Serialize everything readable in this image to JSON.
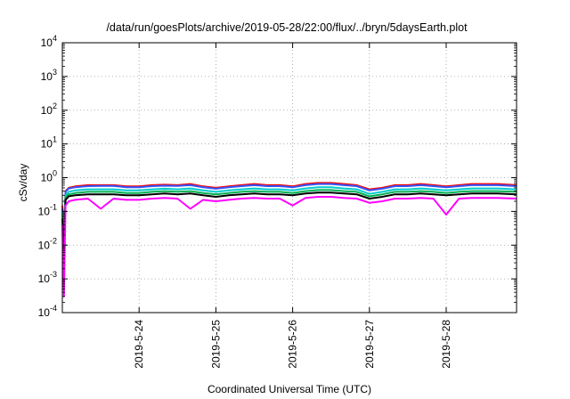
{
  "chart_data": {
    "type": "line",
    "title": "/data/run/goesPlots/archive/2019-05-28/22:00/flux/../bryn/5daysEarth.plot",
    "xlabel": "Coordinated Universal Time (UTC)",
    "ylabel": "cSv/day",
    "yscale": "log",
    "ylim": [
      0.0001,
      10000
    ],
    "xlim": [
      "2019-05-23T00:00",
      "2019-05-28T22:00"
    ],
    "grid": true,
    "y_ticks": [
      {
        "base": "10",
        "exp": "-4",
        "value": 0.0001
      },
      {
        "base": "10",
        "exp": "-3",
        "value": 0.001
      },
      {
        "base": "10",
        "exp": "-2",
        "value": 0.01
      },
      {
        "base": "10",
        "exp": "-1",
        "value": 0.1
      },
      {
        "base": "10",
        "exp": "0",
        "value": 1
      },
      {
        "base": "10",
        "exp": "1",
        "value": 10
      },
      {
        "base": "10",
        "exp": "2",
        "value": 100
      },
      {
        "base": "10",
        "exp": "3",
        "value": 1000
      },
      {
        "base": "10",
        "exp": "4",
        "value": 10000
      }
    ],
    "x_ticks": [
      {
        "label": "2019-5-24",
        "value": "2019-05-24T00:00"
      },
      {
        "label": "2019-5-25",
        "value": "2019-05-25T00:00"
      },
      {
        "label": "2019-5-26",
        "value": "2019-05-26T00:00"
      },
      {
        "label": "2019-5-27",
        "value": "2019-05-27T00:00"
      },
      {
        "label": "2019-5-28",
        "value": "2019-05-28T00:00"
      }
    ],
    "x": [
      "2019-05-23T00:00",
      "2019-05-23T00:30",
      "2019-05-23T01:00",
      "2019-05-23T02:00",
      "2019-05-23T04:00",
      "2019-05-23T08:00",
      "2019-05-23T12:00",
      "2019-05-23T16:00",
      "2019-05-23T20:00",
      "2019-05-24T00:00",
      "2019-05-24T04:00",
      "2019-05-24T08:00",
      "2019-05-24T12:00",
      "2019-05-24T16:00",
      "2019-05-24T20:00",
      "2019-05-25T00:00",
      "2019-05-25T04:00",
      "2019-05-25T08:00",
      "2019-05-25T12:00",
      "2019-05-25T16:00",
      "2019-05-25T20:00",
      "2019-05-26T00:00",
      "2019-05-26T04:00",
      "2019-05-26T08:00",
      "2019-05-26T12:00",
      "2019-05-26T16:00",
      "2019-05-26T20:00",
      "2019-05-27T00:00",
      "2019-05-27T04:00",
      "2019-05-27T08:00",
      "2019-05-27T12:00",
      "2019-05-27T16:00",
      "2019-05-27T20:00",
      "2019-05-28T00:00",
      "2019-05-28T04:00",
      "2019-05-28T08:00",
      "2019-05-28T12:00",
      "2019-05-28T16:00",
      "2019-05-28T22:00"
    ],
    "series": [
      {
        "color": "#ff0000",
        "values": [
          0.15,
          0.02,
          0.4,
          0.5,
          0.55,
          0.6,
          0.6,
          0.6,
          0.55,
          0.55,
          0.6,
          0.62,
          0.6,
          0.65,
          0.55,
          0.5,
          0.55,
          0.6,
          0.65,
          0.6,
          0.6,
          0.55,
          0.65,
          0.7,
          0.7,
          0.65,
          0.6,
          0.45,
          0.5,
          0.6,
          0.6,
          0.65,
          0.6,
          0.55,
          0.6,
          0.65,
          0.65,
          0.65,
          0.6
        ]
      },
      {
        "color": "#3355ff",
        "values": [
          0.12,
          0.015,
          0.38,
          0.48,
          0.52,
          0.56,
          0.57,
          0.57,
          0.52,
          0.52,
          0.56,
          0.58,
          0.57,
          0.6,
          0.52,
          0.47,
          0.52,
          0.56,
          0.6,
          0.56,
          0.56,
          0.52,
          0.6,
          0.65,
          0.65,
          0.6,
          0.56,
          0.42,
          0.47,
          0.56,
          0.56,
          0.6,
          0.56,
          0.52,
          0.56,
          0.6,
          0.6,
          0.6,
          0.56
        ]
      },
      {
        "color": "#00cccc",
        "values": [
          0.1,
          0.01,
          0.3,
          0.38,
          0.42,
          0.45,
          0.45,
          0.45,
          0.42,
          0.42,
          0.45,
          0.47,
          0.45,
          0.48,
          0.42,
          0.38,
          0.42,
          0.45,
          0.48,
          0.45,
          0.45,
          0.42,
          0.48,
          0.52,
          0.52,
          0.48,
          0.45,
          0.33,
          0.38,
          0.45,
          0.45,
          0.48,
          0.45,
          0.42,
          0.45,
          0.48,
          0.48,
          0.48,
          0.45
        ]
      },
      {
        "color": "#00b050",
        "values": [
          0.08,
          0.008,
          0.26,
          0.32,
          0.35,
          0.38,
          0.38,
          0.38,
          0.35,
          0.35,
          0.38,
          0.4,
          0.38,
          0.4,
          0.35,
          0.32,
          0.35,
          0.38,
          0.4,
          0.38,
          0.38,
          0.35,
          0.4,
          0.43,
          0.43,
          0.4,
          0.38,
          0.28,
          0.32,
          0.38,
          0.38,
          0.4,
          0.38,
          0.35,
          0.38,
          0.4,
          0.4,
          0.4,
          0.38
        ]
      },
      {
        "color": "#000000",
        "values": [
          0.06,
          0.005,
          0.22,
          0.28,
          0.3,
          0.32,
          0.32,
          0.32,
          0.3,
          0.3,
          0.32,
          0.34,
          0.32,
          0.34,
          0.3,
          0.27,
          0.3,
          0.32,
          0.34,
          0.32,
          0.32,
          0.3,
          0.34,
          0.36,
          0.36,
          0.34,
          0.32,
          0.24,
          0.27,
          0.32,
          0.32,
          0.34,
          0.32,
          0.3,
          0.32,
          0.34,
          0.34,
          0.34,
          0.32
        ]
      },
      {
        "color": "#ff00ff",
        "values": [
          0.04,
          0.0003,
          0.15,
          0.2,
          0.22,
          0.24,
          0.12,
          0.24,
          0.22,
          0.22,
          0.24,
          0.25,
          0.24,
          0.12,
          0.22,
          0.2,
          0.22,
          0.24,
          0.25,
          0.24,
          0.24,
          0.15,
          0.25,
          0.27,
          0.27,
          0.25,
          0.24,
          0.18,
          0.2,
          0.24,
          0.24,
          0.25,
          0.24,
          0.08,
          0.24,
          0.25,
          0.25,
          0.25,
          0.24
        ]
      }
    ]
  }
}
